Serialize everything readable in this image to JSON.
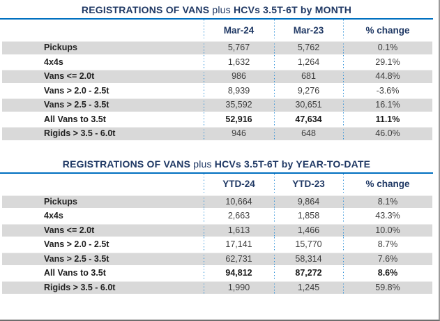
{
  "colors": {
    "title_navy": "#1F3864",
    "rule_blue": "#0070C0",
    "dotted_separator_blue": "#2E90D8",
    "alt_row_gray": "#D9D9D9"
  },
  "tables": [
    {
      "title": {
        "lead": "REGISTRATIONS OF VANS",
        "mid": "plus",
        "tail": "HCVs 3.5T-6T by MONTH"
      },
      "columns": [
        "Mar-24",
        "Mar-23",
        "% change"
      ],
      "rows": [
        {
          "label": "Pickups",
          "v1": "5,767",
          "v2": "5,762",
          "change": "0.1%"
        },
        {
          "label": "4x4s",
          "v1": "1,632",
          "v2": "1,264",
          "change": "29.1%"
        },
        {
          "label": "Vans <= 2.0t",
          "v1": "986",
          "v2": "681",
          "change": "44.8%"
        },
        {
          "label": "Vans > 2.0 - 2.5t",
          "v1": "8,939",
          "v2": "9,276",
          "change": "-3.6%"
        },
        {
          "label": "Vans > 2.5 - 3.5t",
          "v1": "35,592",
          "v2": "30,651",
          "change": "16.1%"
        },
        {
          "label": "All Vans to 3.5t",
          "v1": "52,916",
          "v2": "47,634",
          "change": "11.1%"
        },
        {
          "label": "Rigids > 3.5 - 6.0t",
          "v1": "946",
          "v2": "648",
          "change": "46.0%"
        }
      ]
    },
    {
      "title": {
        "lead": "REGISTRATIONS OF VANS",
        "mid": "plus",
        "tail": "HCVs 3.5T-6T by YEAR-TO-DATE"
      },
      "columns": [
        "YTD-24",
        "YTD-23",
        "% change"
      ],
      "rows": [
        {
          "label": "Pickups",
          "v1": "10,664",
          "v2": "9,864",
          "change": "8.1%"
        },
        {
          "label": "4x4s",
          "v1": "2,663",
          "v2": "1,858",
          "change": "43.3%"
        },
        {
          "label": "Vans <= 2.0t",
          "v1": "1,613",
          "v2": "1,466",
          "change": "10.0%"
        },
        {
          "label": "Vans > 2.0 - 2.5t",
          "v1": "17,141",
          "v2": "15,770",
          "change": "8.7%"
        },
        {
          "label": "Vans > 2.5 - 3.5t",
          "v1": "62,731",
          "v2": "58,314",
          "change": "7.6%"
        },
        {
          "label": "All Vans to 3.5t",
          "v1": "94,812",
          "v2": "87,272",
          "change": "8.6%"
        },
        {
          "label": "Rigids > 3.5 - 6.0t",
          "v1": "1,990",
          "v2": "1,245",
          "change": "59.8%"
        }
      ]
    }
  ],
  "chart_data": [
    {
      "type": "table",
      "title": "REGISTRATIONS OF VANS plus HCVs 3.5T-6T by MONTH",
      "columns": [
        "",
        "Mar-24",
        "Mar-23",
        "% change"
      ],
      "rows": [
        [
          "Pickups",
          5767,
          5762,
          "0.1%"
        ],
        [
          "4x4s",
          1632,
          1264,
          "29.1%"
        ],
        [
          "Vans <= 2.0t",
          986,
          681,
          "44.8%"
        ],
        [
          "Vans > 2.0 - 2.5t",
          8939,
          9276,
          "-3.6%"
        ],
        [
          "Vans > 2.5 - 3.5t",
          35592,
          30651,
          "16.1%"
        ],
        [
          "All Vans to 3.5t",
          52916,
          47634,
          "11.1%"
        ],
        [
          "Rigids > 3.5 - 6.0t",
          946,
          648,
          "46.0%"
        ]
      ]
    },
    {
      "type": "table",
      "title": "REGISTRATIONS OF VANS plus HCVs 3.5T-6T by YEAR-TO-DATE",
      "columns": [
        "",
        "YTD-24",
        "YTD-23",
        "% change"
      ],
      "rows": [
        [
          "Pickups",
          10664,
          9864,
          "8.1%"
        ],
        [
          "4x4s",
          2663,
          1858,
          "43.3%"
        ],
        [
          "Vans <= 2.0t",
          1613,
          1466,
          "10.0%"
        ],
        [
          "Vans > 2.0 - 2.5t",
          17141,
          15770,
          "8.7%"
        ],
        [
          "Vans > 2.5 - 3.5t",
          62731,
          58314,
          "7.6%"
        ],
        [
          "All Vans to 3.5t",
          94812,
          87272,
          "8.6%"
        ],
        [
          "Rigids > 3.5 - 6.0t",
          1990,
          1245,
          "59.8%"
        ]
      ]
    }
  ]
}
